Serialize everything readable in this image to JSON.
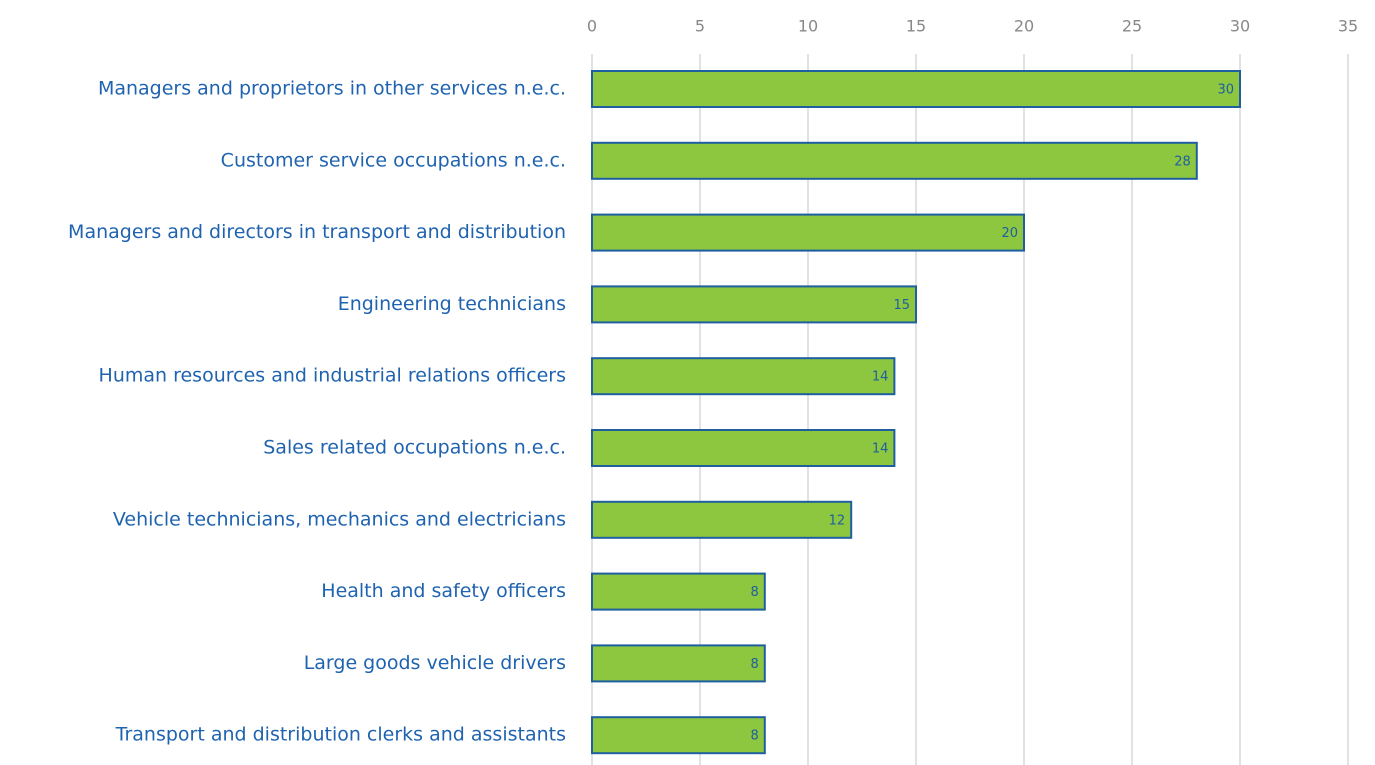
{
  "chart_data": {
    "type": "bar",
    "orientation": "horizontal",
    "categories": [
      "Managers and proprietors in other services n.e.c.",
      "Customer service occupations n.e.c.",
      "Managers and directors in transport and distribution",
      "Engineering technicians",
      "Human resources and industrial relations officers",
      "Sales related occupations n.e.c.",
      "Vehicle technicians, mechanics and electricians",
      "Health and safety officers",
      "Large goods vehicle drivers",
      "Transport and distribution clerks and assistants"
    ],
    "values": [
      30,
      28,
      20,
      15,
      14,
      14,
      12,
      8,
      8,
      8
    ],
    "color": "#8dc63f",
    "edge_color": "#1f5fa0",
    "xlim": [
      0,
      35
    ],
    "xticks": [
      0,
      5,
      10,
      15,
      20,
      25,
      30,
      35
    ],
    "grid": true
  }
}
